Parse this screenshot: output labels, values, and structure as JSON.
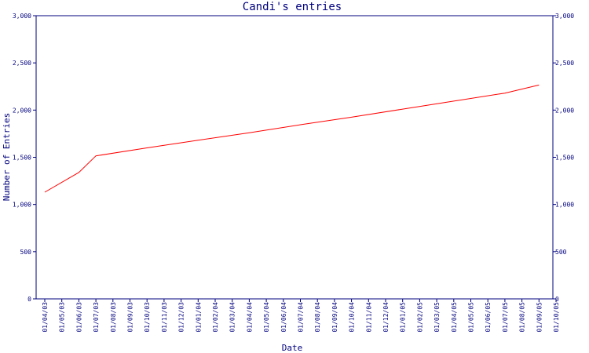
{
  "chart_data": {
    "type": "line",
    "title": "Candi's entries",
    "xlabel": "Date",
    "ylabel": "Number of Entries",
    "ylim": [
      0,
      3000
    ],
    "y_ticks": [
      0,
      500,
      1000,
      1500,
      2000,
      2500,
      3000
    ],
    "y_tick_labels": [
      "0",
      "500",
      "1,000",
      "1,500",
      "2,000",
      "2,500",
      "3,000"
    ],
    "x_tick_labels": [
      "01/04/03",
      "01/05/03",
      "01/06/03",
      "01/07/03",
      "01/08/03",
      "01/09/03",
      "01/10/03",
      "01/11/03",
      "01/12/03",
      "01/01/04",
      "01/02/04",
      "01/03/04",
      "01/04/04",
      "01/05/04",
      "01/06/04",
      "01/07/04",
      "01/08/04",
      "01/09/04",
      "01/10/04",
      "01/11/04",
      "01/12/04",
      "01/01/05",
      "01/02/05",
      "01/03/05",
      "01/04/05",
      "01/05/05",
      "01/06/05",
      "01/07/05",
      "01/08/05",
      "01/09/05",
      "01/10/05"
    ],
    "grid": false,
    "series": [
      {
        "color": "#ff0000",
        "points": [
          {
            "x": "01/04/03",
            "y": 1130
          },
          {
            "x": "01/06/03",
            "y": 1340
          },
          {
            "x": "01/07/03",
            "y": 1515
          },
          {
            "x": "01/10/03",
            "y": 1600
          },
          {
            "x": "01/01/04",
            "y": 1680
          },
          {
            "x": "01/04/04",
            "y": 1760
          },
          {
            "x": "01/07/04",
            "y": 1845
          },
          {
            "x": "01/10/04",
            "y": 1925
          },
          {
            "x": "01/01/05",
            "y": 2010
          },
          {
            "x": "01/04/05",
            "y": 2095
          },
          {
            "x": "01/07/05",
            "y": 2180
          },
          {
            "x": "01/09/05",
            "y": 2265
          }
        ]
      }
    ]
  }
}
